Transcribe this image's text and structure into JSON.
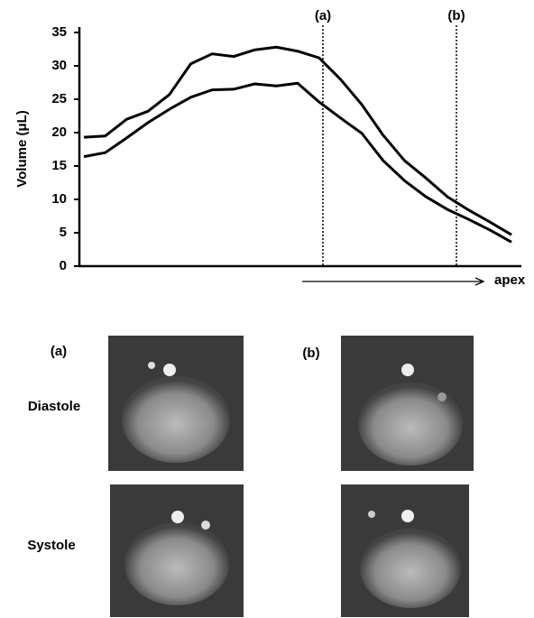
{
  "chart_data": {
    "type": "line",
    "ylabel": "Volume (μL)",
    "xlabel": "apex",
    "categories": [
      null,
      null,
      null,
      null,
      null,
      null,
      null,
      null,
      null,
      null,
      null,
      null,
      null,
      null,
      null,
      null,
      null,
      null,
      null,
      null,
      null
    ],
    "series": [
      {
        "color": "#000000",
        "values": [
          19.3,
          19.5,
          22,
          23.2,
          25.7,
          30.3,
          31.8,
          31.4,
          32.4,
          32.8,
          32.2,
          31.2,
          28,
          24.2,
          19.6,
          15.8,
          13.2,
          10.4,
          8.4,
          6.6,
          4.7
        ]
      },
      {
        "color": "#000000",
        "values": [
          16.4,
          17,
          19.2,
          21.5,
          23.5,
          25.3,
          26.4,
          26.5,
          27.3,
          27,
          27.4,
          24.6,
          22.2,
          19.9,
          15.8,
          12.8,
          10.4,
          8.5,
          7,
          5.4,
          3.6
        ]
      }
    ],
    "ylim": [
      0,
      35
    ],
    "yticks": [
      0,
      5,
      10,
      15,
      20,
      25,
      30,
      35
    ],
    "grid": false,
    "annotations": [
      "(a)",
      "(b)"
    ]
  },
  "figure": {
    "column_labels": [
      "(a)",
      "(b)"
    ],
    "row_labels": [
      "Diastole",
      "Systole"
    ]
  }
}
